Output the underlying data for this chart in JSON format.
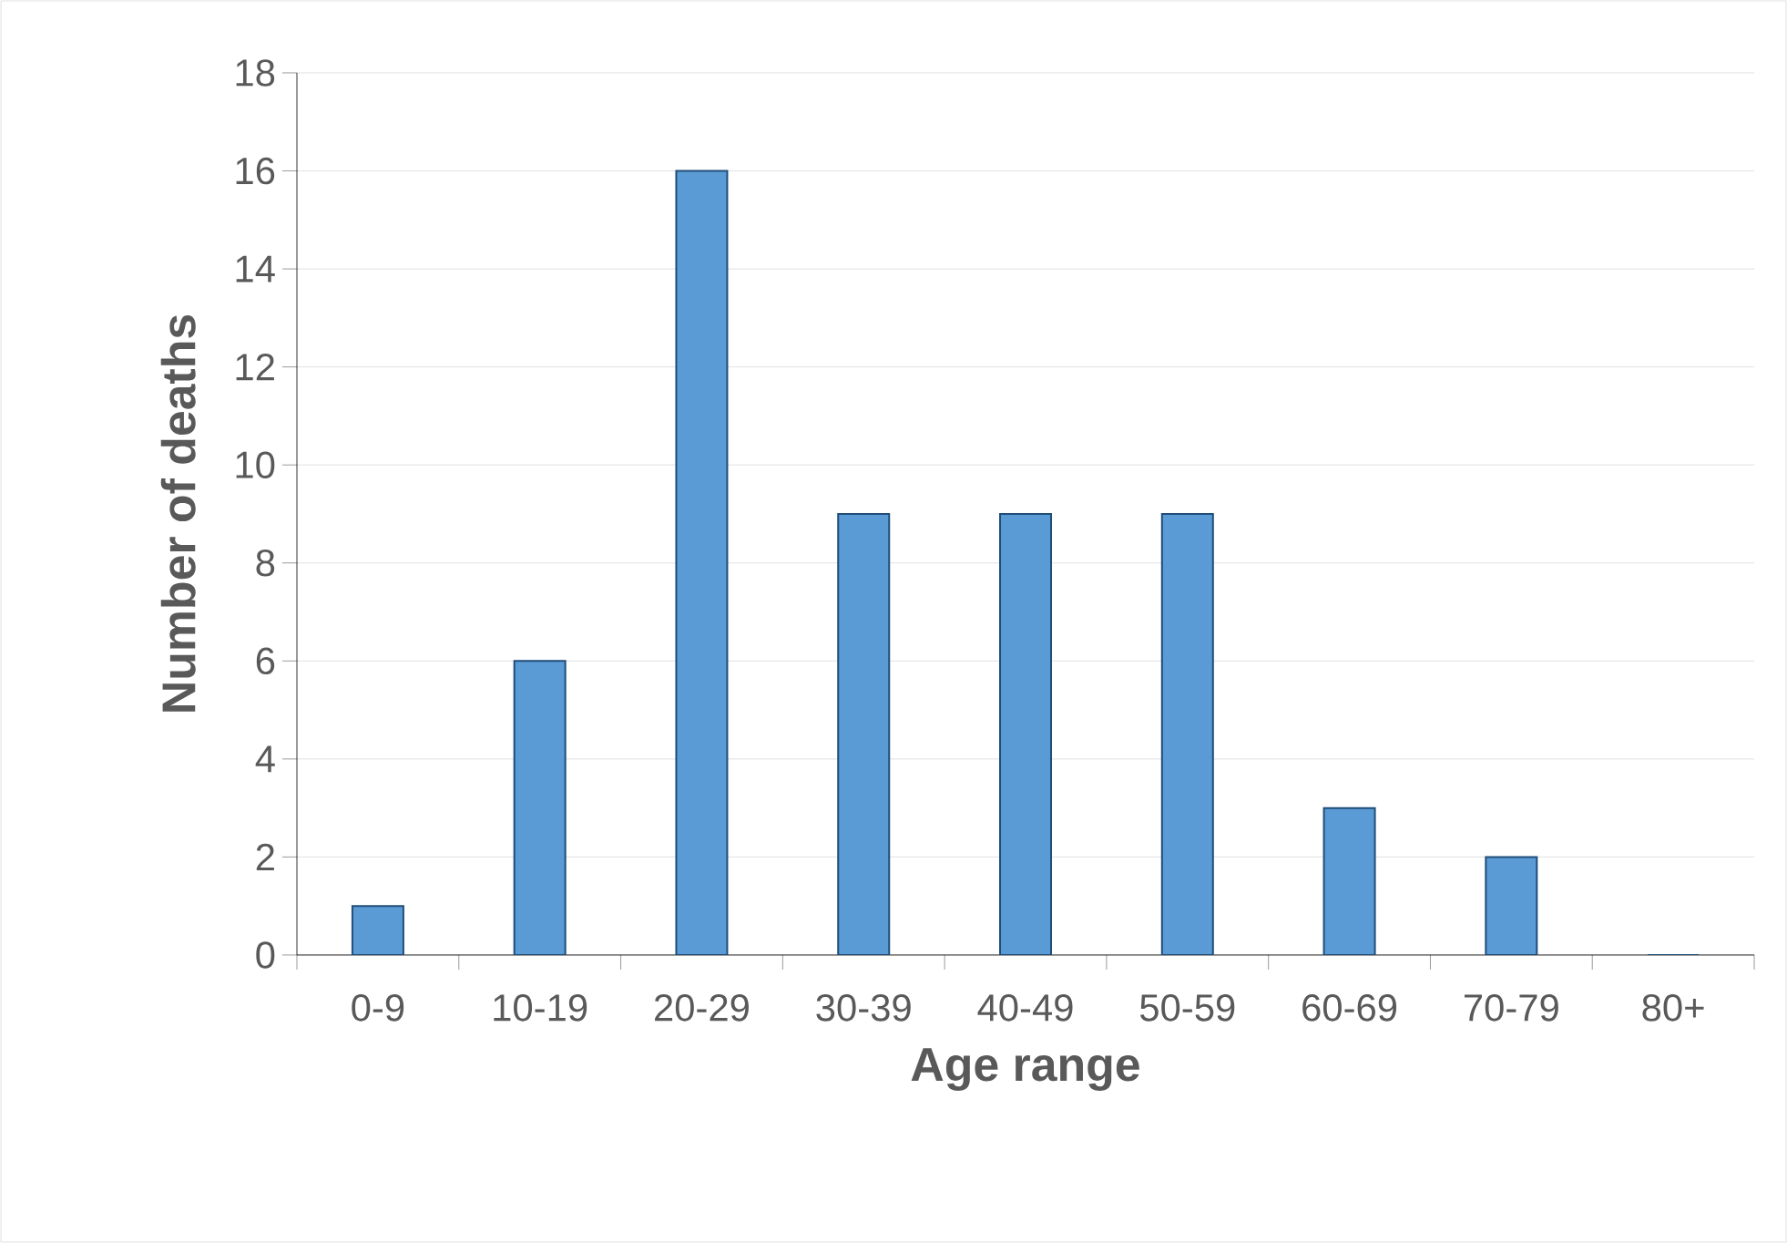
{
  "chart_data": {
    "type": "bar",
    "xlabel": "Age range",
    "ylabel": "Number of deaths",
    "categories": [
      "0-9",
      "10-19",
      "20-29",
      "30-39",
      "40-49",
      "50-59",
      "60-69",
      "70-79",
      "80+"
    ],
    "values": [
      1,
      6,
      16,
      9,
      9,
      9,
      3,
      2,
      0
    ],
    "color": "#5b9bd5",
    "ylim": [
      0,
      18
    ],
    "yticks": [
      0,
      2,
      4,
      6,
      8,
      10,
      12,
      14,
      16,
      18
    ],
    "grid": "y"
  }
}
